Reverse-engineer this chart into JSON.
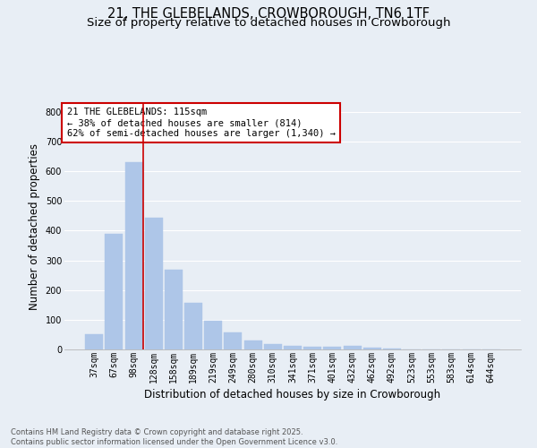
{
  "title1": "21, THE GLEBELANDS, CROWBOROUGH, TN6 1TF",
  "title2": "Size of property relative to detached houses in Crowborough",
  "xlabel": "Distribution of detached houses by size in Crowborough",
  "ylabel": "Number of detached properties",
  "categories": [
    "37sqm",
    "67sqm",
    "98sqm",
    "128sqm",
    "158sqm",
    "189sqm",
    "219sqm",
    "249sqm",
    "280sqm",
    "310sqm",
    "341sqm",
    "371sqm",
    "401sqm",
    "432sqm",
    "462sqm",
    "492sqm",
    "523sqm",
    "553sqm",
    "583sqm",
    "614sqm",
    "644sqm"
  ],
  "values": [
    50,
    390,
    632,
    445,
    270,
    157,
    98,
    57,
    30,
    18,
    12,
    10,
    10,
    12,
    5,
    2,
    1,
    0,
    0,
    1,
    0
  ],
  "bar_color": "#aec6e8",
  "bar_edge_color": "#aec6e8",
  "vline_pos": 2.45,
  "vline_color": "#cc0000",
  "annotation_text": "21 THE GLEBELANDS: 115sqm\n← 38% of detached houses are smaller (814)\n62% of semi-detached houses are larger (1,340) →",
  "annotation_box_color": "#ffffff",
  "annotation_box_edge": "#cc0000",
  "background_color": "#e8eef5",
  "plot_background": "#e8eef5",
  "grid_color": "#ffffff",
  "ylim": [
    0,
    830
  ],
  "yticks": [
    0,
    100,
    200,
    300,
    400,
    500,
    600,
    700,
    800
  ],
  "footnote": "Contains HM Land Registry data © Crown copyright and database right 2025.\nContains public sector information licensed under the Open Government Licence v3.0.",
  "title_fontsize": 10.5,
  "subtitle_fontsize": 9.5,
  "xlabel_fontsize": 8.5,
  "ylabel_fontsize": 8.5,
  "tick_fontsize": 7,
  "annotation_fontsize": 7.5,
  "footnote_fontsize": 6.0
}
